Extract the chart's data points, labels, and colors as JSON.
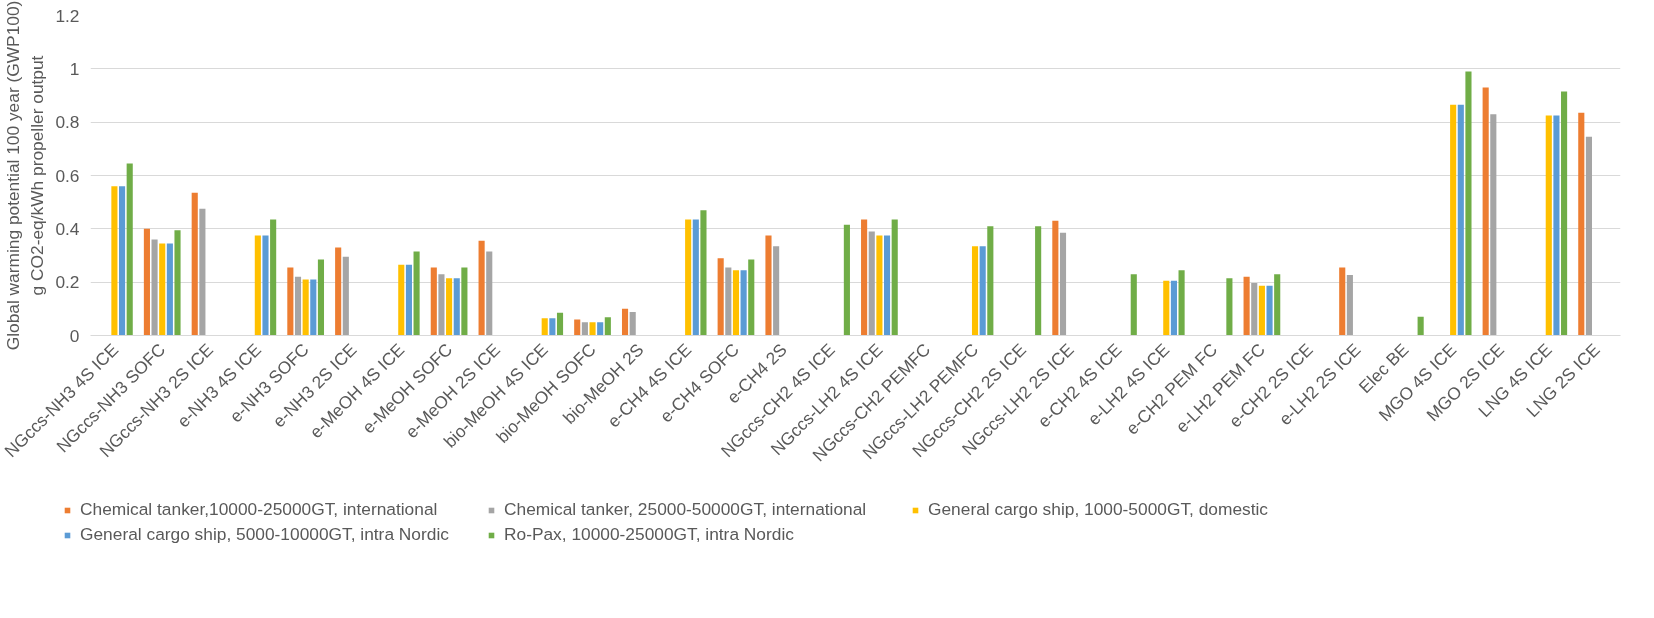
{
  "chart_data": {
    "type": "bar",
    "ylabel": "Global warming potential 100 year (GWP100)\ng CO2-eq/kWh propeller output",
    "categories": [
      "NGccs-NH3 4S ICE",
      "NGccs-NH3 SOFC",
      "NGccs-NH3 2S ICE",
      "e-NH3 4S ICE",
      "e-NH3 SOFC",
      "e-NH3 2S ICE",
      "e-MeOH 4S ICE",
      "e-MeOH SOFC",
      "e-MeOH 2S ICE",
      "bio-MeOH 4S ICE",
      "bio-MeOH SOFC",
      "bio-MeOH 2S",
      "e-CH4 4S ICE",
      "e-CH4 SOFC",
      "e-CH4 2S",
      "NGccs-CH2 4S ICE",
      "NGccs-LH2 4S ICE",
      "NGccs-CH2 PEMFC",
      "NGccs-LH2 PEMFC",
      "NGccs-CH2 2S ICE",
      "NGccs-LH2 2S ICE",
      "e-CH2 4S ICE",
      "e-LH2 4S ICE",
      "e-CH2 PEM FC",
      "e-LH2 PEM FC",
      "e-CH2 2S ICE",
      "e-LH2 2S ICE",
      "Elec BE",
      "MGO 4S ICE",
      "MGO 2S ICE",
      "LNG 4S ICE",
      "LNG 2S ICE"
    ],
    "series": [
      {
        "name": "Chemical tanker,10000-25000GT, international",
        "color": "#ed7d31",
        "values": [
          null,
          0.4,
          0.535,
          null,
          0.255,
          0.33,
          null,
          0.255,
          0.355,
          null,
          0.06,
          0.1,
          null,
          0.29,
          0.375,
          null,
          0.435,
          null,
          null,
          null,
          0.43,
          null,
          null,
          null,
          0.22,
          null,
          0.255,
          null,
          null,
          0.93,
          null,
          0.835
        ]
      },
      {
        "name": "Chemical tanker, 25000-50000GT, international",
        "color": "#a5a5a5",
        "values": [
          null,
          0.36,
          0.475,
          null,
          0.22,
          0.295,
          null,
          0.23,
          0.315,
          null,
          0.05,
          0.088,
          null,
          0.255,
          0.335,
          null,
          0.39,
          null,
          null,
          null,
          0.385,
          null,
          null,
          null,
          0.197,
          null,
          0.227,
          null,
          null,
          0.83,
          null,
          0.745
        ]
      },
      {
        "name": "General cargo ship, 1000-5000GT, domestic",
        "color": "#ffc000",
        "values": [
          0.56,
          0.345,
          null,
          0.375,
          0.21,
          null,
          0.265,
          0.215,
          null,
          0.065,
          0.05,
          null,
          0.435,
          0.245,
          null,
          null,
          0.375,
          null,
          0.335,
          null,
          null,
          null,
          0.205,
          null,
          0.187,
          null,
          null,
          null,
          0.865,
          null,
          0.825,
          null
        ]
      },
      {
        "name": "General cargo ship, 5000-10000GT, intra Nordic",
        "color": "#5b9bd5",
        "values": [
          0.56,
          0.345,
          null,
          0.375,
          0.21,
          null,
          0.265,
          0.215,
          null,
          0.065,
          0.05,
          null,
          0.435,
          0.245,
          null,
          null,
          0.375,
          null,
          0.335,
          null,
          null,
          null,
          0.205,
          null,
          0.187,
          null,
          null,
          null,
          0.865,
          null,
          0.825,
          null
        ]
      },
      {
        "name": "Ro-Pax, 10000-25000GT, intra Nordic",
        "color": "#70ad47",
        "values": [
          0.645,
          0.395,
          null,
          0.435,
          0.285,
          null,
          0.315,
          0.255,
          null,
          0.085,
          0.068,
          null,
          0.47,
          0.285,
          null,
          0.415,
          0.435,
          null,
          0.41,
          0.41,
          null,
          0.23,
          0.245,
          0.215,
          0.23,
          null,
          null,
          0.07,
          0.99,
          null,
          0.915,
          null
        ]
      }
    ],
    "ylim": [
      0,
      1.2
    ],
    "yticks": [
      0,
      0.2,
      0.4,
      0.6,
      0.8,
      1,
      1.2
    ],
    "grid": "y",
    "legend": "bottom"
  }
}
